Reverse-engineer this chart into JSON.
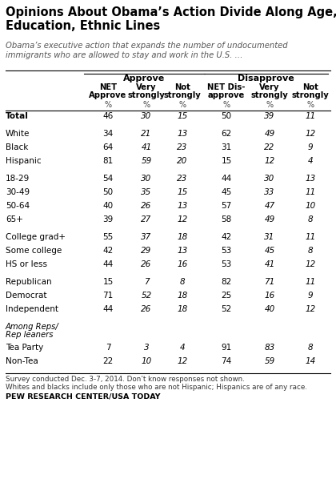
{
  "title": "Opinions About Obama’s Action Divide Along Age,\nEducation, Ethnic Lines",
  "subtitle": "Obama’s executive action that expands the number of undocumented\nimmigrants who are allowed to stay and work in the U.S. …",
  "col_headers_line1": [
    "NET",
    "Very",
    "Not",
    "NET Dis-",
    "Very",
    "Not"
  ],
  "col_headers_line2": [
    "Approve",
    "strongly",
    "strongly",
    "approve",
    "strongly",
    "strongly"
  ],
  "group_headers": [
    "Approve",
    "Disapprove"
  ],
  "rows": [
    {
      "label": "Total",
      "values": [
        46,
        30,
        15,
        50,
        39,
        11
      ],
      "bold": true,
      "italic": false,
      "spacer_before": false,
      "two_line": false
    },
    {
      "label": "",
      "values": null,
      "bold": false,
      "italic": false,
      "spacer_before": false,
      "two_line": false
    },
    {
      "label": "White",
      "values": [
        34,
        21,
        13,
        62,
        49,
        12
      ],
      "bold": false,
      "italic": false,
      "spacer_before": false,
      "two_line": false
    },
    {
      "label": "Black",
      "values": [
        64,
        41,
        23,
        31,
        22,
        9
      ],
      "bold": false,
      "italic": false,
      "spacer_before": false,
      "two_line": false
    },
    {
      "label": "Hispanic",
      "values": [
        81,
        59,
        20,
        15,
        12,
        4
      ],
      "bold": false,
      "italic": false,
      "spacer_before": false,
      "two_line": false
    },
    {
      "label": "",
      "values": null,
      "bold": false,
      "italic": false,
      "spacer_before": false,
      "two_line": false
    },
    {
      "label": "18-29",
      "values": [
        54,
        30,
        23,
        44,
        30,
        13
      ],
      "bold": false,
      "italic": false,
      "spacer_before": false,
      "two_line": false
    },
    {
      "label": "30-49",
      "values": [
        50,
        35,
        15,
        45,
        33,
        11
      ],
      "bold": false,
      "italic": false,
      "spacer_before": false,
      "two_line": false
    },
    {
      "label": "50-64",
      "values": [
        40,
        26,
        13,
        57,
        47,
        10
      ],
      "bold": false,
      "italic": false,
      "spacer_before": false,
      "two_line": false
    },
    {
      "label": "65+",
      "values": [
        39,
        27,
        12,
        58,
        49,
        8
      ],
      "bold": false,
      "italic": false,
      "spacer_before": false,
      "two_line": false
    },
    {
      "label": "",
      "values": null,
      "bold": false,
      "italic": false,
      "spacer_before": false,
      "two_line": false
    },
    {
      "label": "College grad+",
      "values": [
        55,
        37,
        18,
        42,
        31,
        11
      ],
      "bold": false,
      "italic": false,
      "spacer_before": false,
      "two_line": false
    },
    {
      "label": "Some college",
      "values": [
        42,
        29,
        13,
        53,
        45,
        8
      ],
      "bold": false,
      "italic": false,
      "spacer_before": false,
      "two_line": false
    },
    {
      "label": "HS or less",
      "values": [
        44,
        26,
        16,
        53,
        41,
        12
      ],
      "bold": false,
      "italic": false,
      "spacer_before": false,
      "two_line": false
    },
    {
      "label": "",
      "values": null,
      "bold": false,
      "italic": false,
      "spacer_before": false,
      "two_line": false
    },
    {
      "label": "Republican",
      "values": [
        15,
        7,
        8,
        82,
        71,
        11
      ],
      "bold": false,
      "italic": false,
      "spacer_before": false,
      "two_line": false
    },
    {
      "label": "Democrat",
      "values": [
        71,
        52,
        18,
        25,
        16,
        9
      ],
      "bold": false,
      "italic": false,
      "spacer_before": false,
      "two_line": false
    },
    {
      "label": "Independent",
      "values": [
        44,
        26,
        18,
        52,
        40,
        12
      ],
      "bold": false,
      "italic": false,
      "spacer_before": false,
      "two_line": false
    },
    {
      "label": "",
      "values": null,
      "bold": false,
      "italic": false,
      "spacer_before": false,
      "two_line": false
    },
    {
      "label": "Among Reps/\nRep leaners",
      "values": null,
      "bold": false,
      "italic": true,
      "spacer_before": false,
      "two_line": true
    },
    {
      "label": "Tea Party",
      "values": [
        7,
        3,
        4,
        91,
        83,
        8
      ],
      "bold": false,
      "italic": false,
      "spacer_before": false,
      "two_line": false
    },
    {
      "label": "Non-Tea",
      "values": [
        22,
        10,
        12,
        74,
        59,
        14
      ],
      "bold": false,
      "italic": false,
      "spacer_before": false,
      "two_line": false
    }
  ],
  "footnote1": "Survey conducted Dec. 3-7, 2014. Don’t know responses not shown.",
  "footnote2": "Whites and blacks include only those who are not Hispanic; Hispanics are of any race.",
  "source": "PEW RESEARCH CENTER/USA TODAY",
  "bg_color": "#ffffff"
}
